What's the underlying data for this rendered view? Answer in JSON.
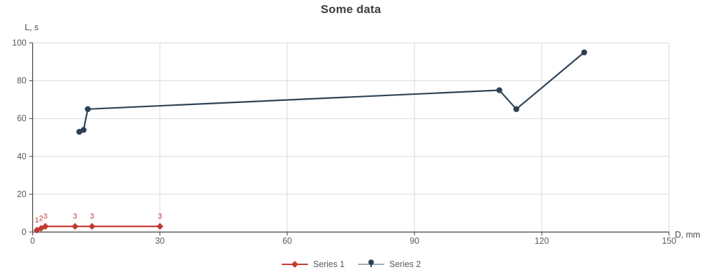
{
  "chart_data": {
    "type": "line",
    "title": "Some data",
    "xlabel": "D, mm",
    "ylabel": "L, s",
    "xlim": [
      0,
      150
    ],
    "ylim": [
      0,
      100
    ],
    "x_ticks": [
      0,
      30,
      60,
      90,
      120,
      150
    ],
    "y_ticks": [
      0,
      20,
      40,
      60,
      80,
      100
    ],
    "grid": true,
    "legend_position": "bottom-center",
    "colors": {
      "grid": "#d9d9d9",
      "axis": "#3f3f3f",
      "tick_label": "#595959",
      "series2_legend_line": "#9fadb9"
    },
    "series": [
      {
        "name": "Series 1",
        "color": "#c13b33",
        "marker": "diamond",
        "points": [
          {
            "x": 1,
            "y": 1
          },
          {
            "x": 2,
            "y": 2
          },
          {
            "x": 3,
            "y": 3
          },
          {
            "x": 10,
            "y": 3
          },
          {
            "x": 14,
            "y": 3
          },
          {
            "x": 30,
            "y": 3
          }
        ],
        "data_labels": [
          "1",
          "2",
          "3",
          "3",
          "3",
          "3"
        ]
      },
      {
        "name": "Series 2",
        "color": "#2d4154",
        "marker": "circle",
        "points": [
          {
            "x": 11,
            "y": 53
          },
          {
            "x": 12,
            "y": 54
          },
          {
            "x": 13,
            "y": 65
          },
          {
            "x": 110,
            "y": 75
          },
          {
            "x": 114,
            "y": 65
          },
          {
            "x": 130,
            "y": 95
          }
        ],
        "data_labels": []
      }
    ]
  }
}
